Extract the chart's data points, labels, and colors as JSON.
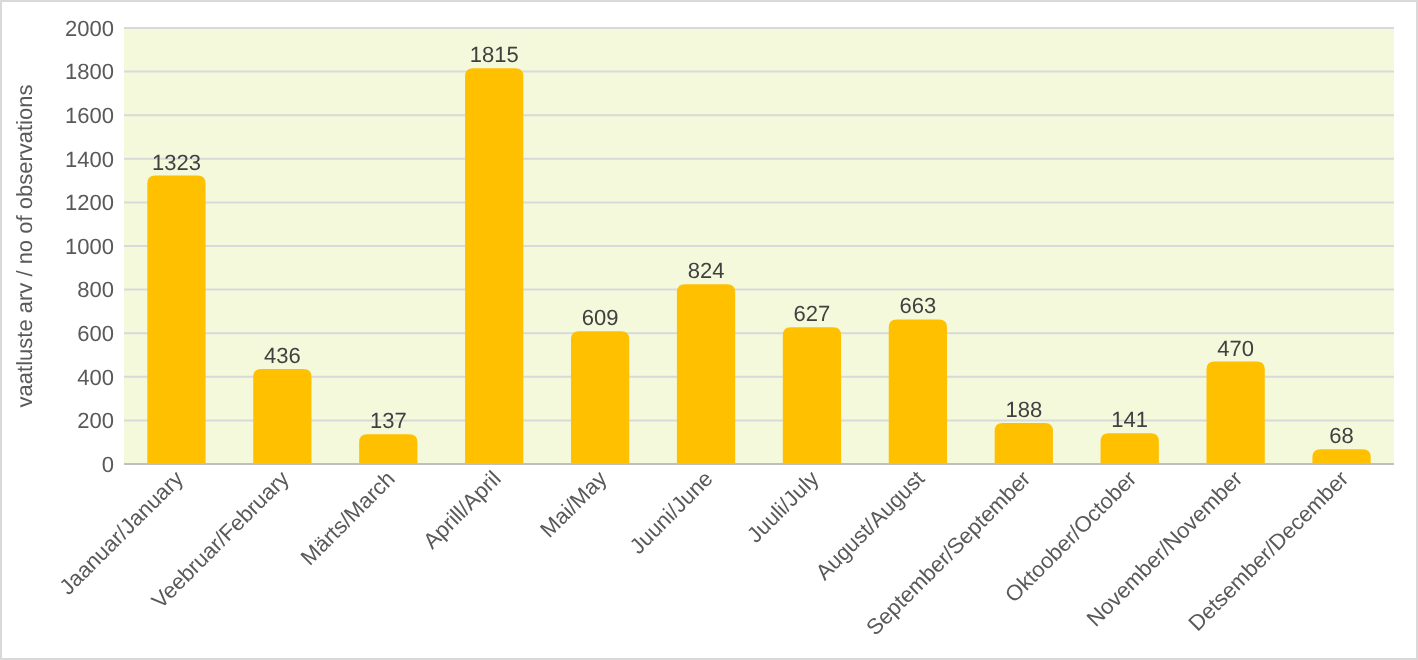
{
  "chart_data": {
    "type": "bar",
    "ylabel": "vaatluste arv / no of observations",
    "categories": [
      "Jaanuar/January",
      "Veebruar/February",
      "Märts/March",
      "Aprill/April",
      "Mai/May",
      "Juuni/June",
      "Juuli/July",
      "August/August",
      "September/September",
      "Oktoober/October",
      "November/November",
      "Detsember/December"
    ],
    "values": [
      1323,
      436,
      137,
      1815,
      609,
      824,
      627,
      663,
      188,
      141,
      470,
      68
    ],
    "color": "#ffc000",
    "ylim": [
      0,
      2000
    ],
    "yticks": [
      0,
      200,
      400,
      600,
      800,
      1000,
      1200,
      1400,
      1600,
      1800,
      2000
    ],
    "grid": "y",
    "data_labels": true
  }
}
